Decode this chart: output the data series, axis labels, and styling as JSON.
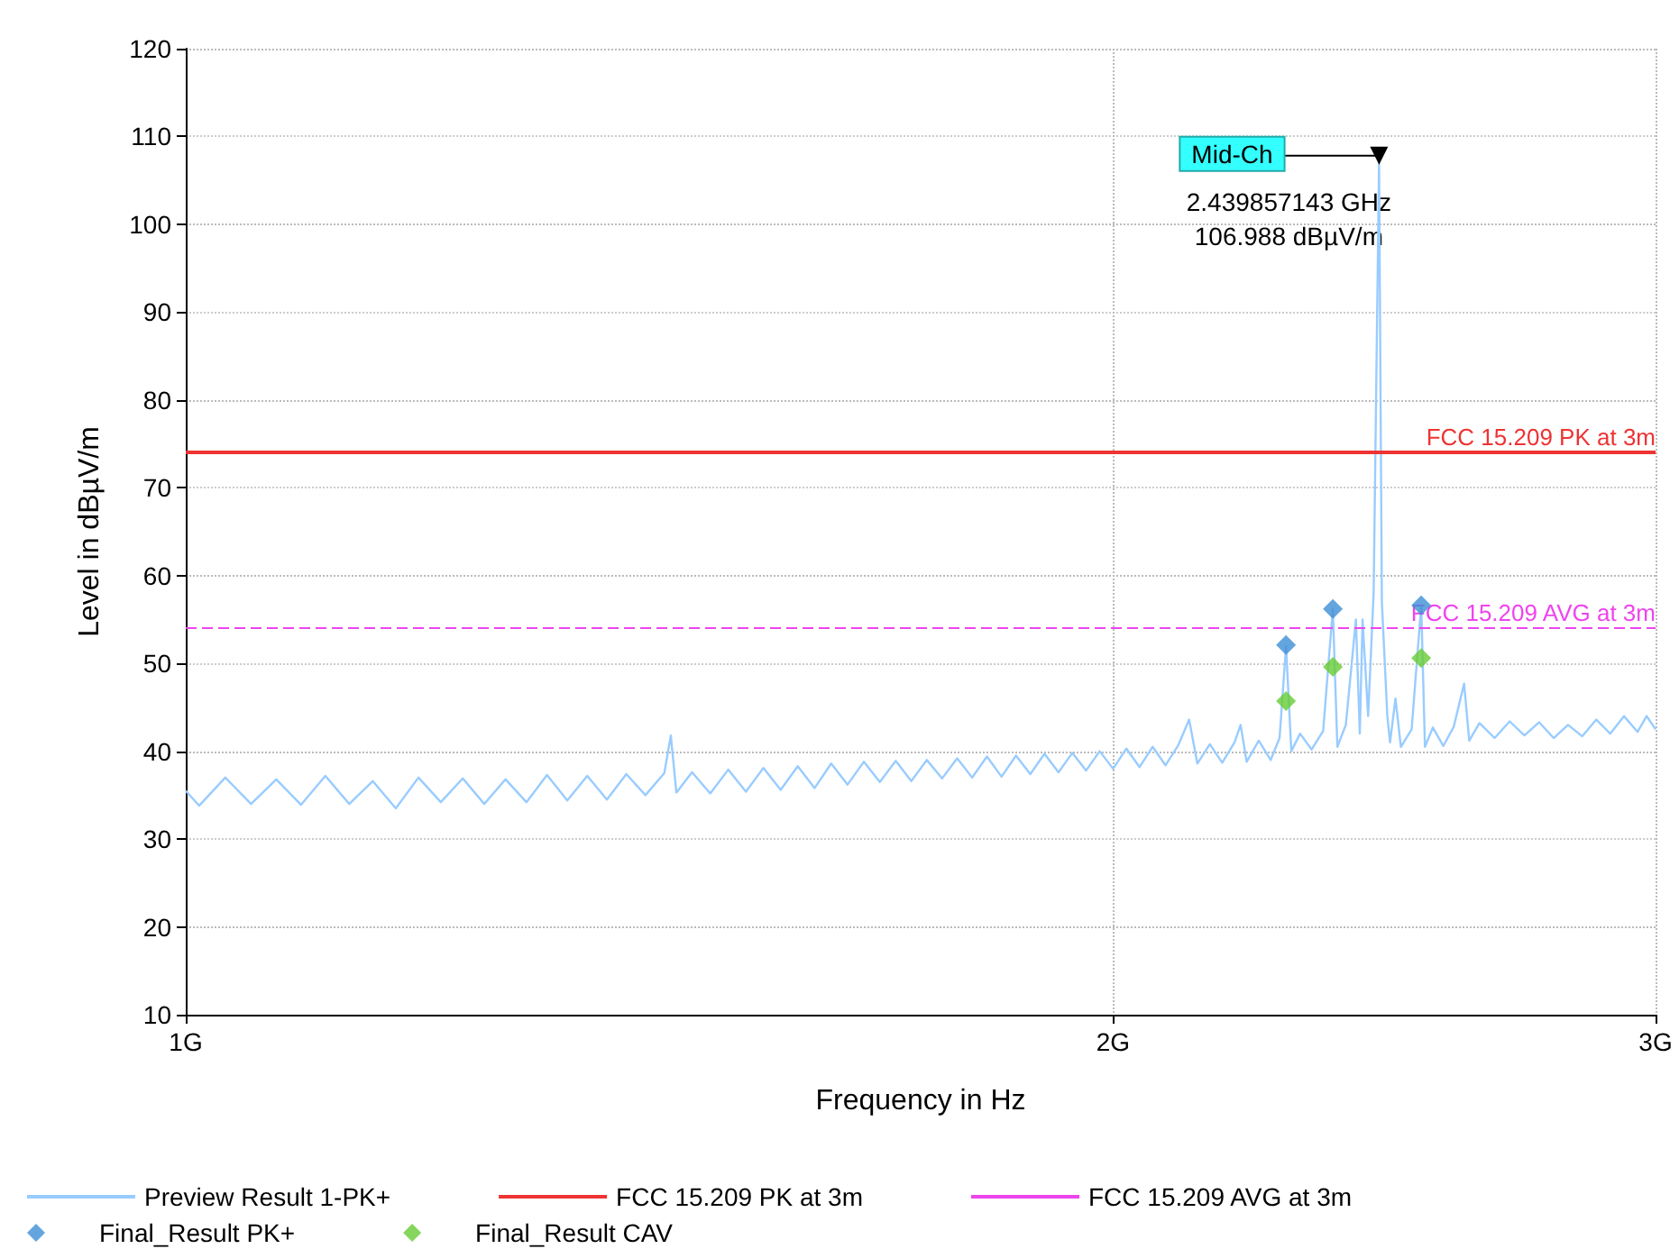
{
  "chart_data": {
    "type": "line",
    "xlabel": "Frequency in Hz",
    "ylabel": "Level in dBµV/m",
    "log": "x",
    "xlim": [
      1,
      3
    ],
    "xticks": [
      {
        "value": 1,
        "label": "1G"
      },
      {
        "value": 2,
        "label": "2G"
      },
      {
        "value": 3,
        "label": "3G"
      }
    ],
    "ylim": [
      10,
      120
    ],
    "yticks": [
      10,
      20,
      30,
      40,
      50,
      60,
      70,
      80,
      90,
      100,
      110,
      120
    ],
    "grid": true,
    "legend": "bottom",
    "series": [
      {
        "name": "Preview Result 1-PK+",
        "color": "#99ccff",
        "marker": "none",
        "x": [
          1.0,
          1.01,
          1.03,
          1.05,
          1.07,
          1.09,
          1.11,
          1.13,
          1.15,
          1.17,
          1.19,
          1.21,
          1.23,
          1.25,
          1.27,
          1.29,
          1.31,
          1.33,
          1.35,
          1.37,
          1.39,
          1.41,
          1.43,
          1.437,
          1.443,
          1.46,
          1.48,
          1.5,
          1.52,
          1.54,
          1.56,
          1.58,
          1.6,
          1.62,
          1.64,
          1.66,
          1.68,
          1.7,
          1.72,
          1.74,
          1.76,
          1.78,
          1.8,
          1.82,
          1.84,
          1.86,
          1.88,
          1.9,
          1.92,
          1.94,
          1.96,
          1.98,
          2.0,
          2.02,
          2.04,
          2.06,
          2.08,
          2.1,
          2.117,
          2.13,
          2.15,
          2.17,
          2.19,
          2.2,
          2.21,
          2.23,
          2.25,
          2.265,
          2.276,
          2.285,
          2.3,
          2.32,
          2.34,
          2.357,
          2.365,
          2.38,
          2.398,
          2.405,
          2.41,
          2.42,
          2.43,
          2.439857143,
          2.445,
          2.455,
          2.46,
          2.47,
          2.48,
          2.5,
          2.518,
          2.525,
          2.54,
          2.56,
          2.58,
          2.6,
          2.61,
          2.63,
          2.66,
          2.69,
          2.72,
          2.75,
          2.78,
          2.81,
          2.84,
          2.87,
          2.9,
          2.93,
          2.96,
          2.98,
          3.0
        ],
        "values": [
          35.5,
          33.8,
          37.0,
          34.0,
          36.8,
          33.9,
          37.2,
          34.0,
          36.6,
          33.5,
          37.0,
          34.2,
          36.9,
          34.0,
          36.8,
          34.2,
          37.3,
          34.4,
          37.2,
          34.5,
          37.4,
          35.0,
          37.5,
          41.8,
          35.3,
          37.6,
          35.2,
          37.9,
          35.4,
          38.1,
          35.6,
          38.3,
          35.8,
          38.6,
          36.2,
          38.8,
          36.5,
          38.9,
          36.6,
          39.0,
          36.9,
          39.2,
          37.0,
          39.4,
          37.1,
          39.5,
          37.4,
          39.7,
          37.6,
          39.8,
          37.8,
          40.0,
          38.0,
          40.3,
          38.2,
          40.5,
          38.4,
          40.7,
          43.6,
          38.6,
          40.8,
          38.7,
          41.0,
          43.0,
          38.8,
          41.2,
          39.0,
          41.5,
          52.0,
          40.0,
          42.0,
          40.2,
          42.3,
          56.2,
          40.5,
          43.0,
          55.0,
          42.0,
          55.0,
          44.0,
          58.0,
          106.988,
          57.0,
          44.0,
          41.0,
          46.0,
          40.5,
          42.5,
          56.6,
          40.5,
          42.7,
          40.6,
          42.8,
          47.7,
          41.2,
          43.2,
          41.5,
          43.4,
          41.8,
          43.3,
          41.5,
          43.0,
          41.7,
          43.6,
          42.0,
          44.0,
          42.2,
          44.0,
          42.5
        ]
      },
      {
        "name": "Final_Result PK+",
        "type": "scatter",
        "color": "#3d8fd6",
        "marker": "diamond",
        "x": [
          2.276,
          2.357,
          2.518
        ],
        "values": [
          52.1,
          56.2,
          56.6
        ]
      },
      {
        "name": "Final_Result CAV",
        "type": "scatter",
        "color": "#66cc33",
        "marker": "diamond",
        "x": [
          2.276,
          2.357,
          2.518
        ],
        "values": [
          45.7,
          49.6,
          50.6
        ]
      }
    ],
    "ref_lines": [
      {
        "axis": "y",
        "value": 74,
        "label": "FCC 15.209 PK at 3m",
        "color": "#ee3333",
        "line_style": "solid"
      },
      {
        "axis": "y",
        "value": 54,
        "label": "FCC 15.209 AVG at 3m",
        "color": "#ee44ee",
        "line_style": "dashed"
      }
    ],
    "annotations": [
      {
        "text": "Mid-Ch",
        "x": 2.439857143,
        "y": 106.988
      },
      {
        "text": "2.439857143 GHz\n106.988 dBµV/m",
        "x": 2.439857143,
        "y": 106.988
      }
    ]
  }
}
